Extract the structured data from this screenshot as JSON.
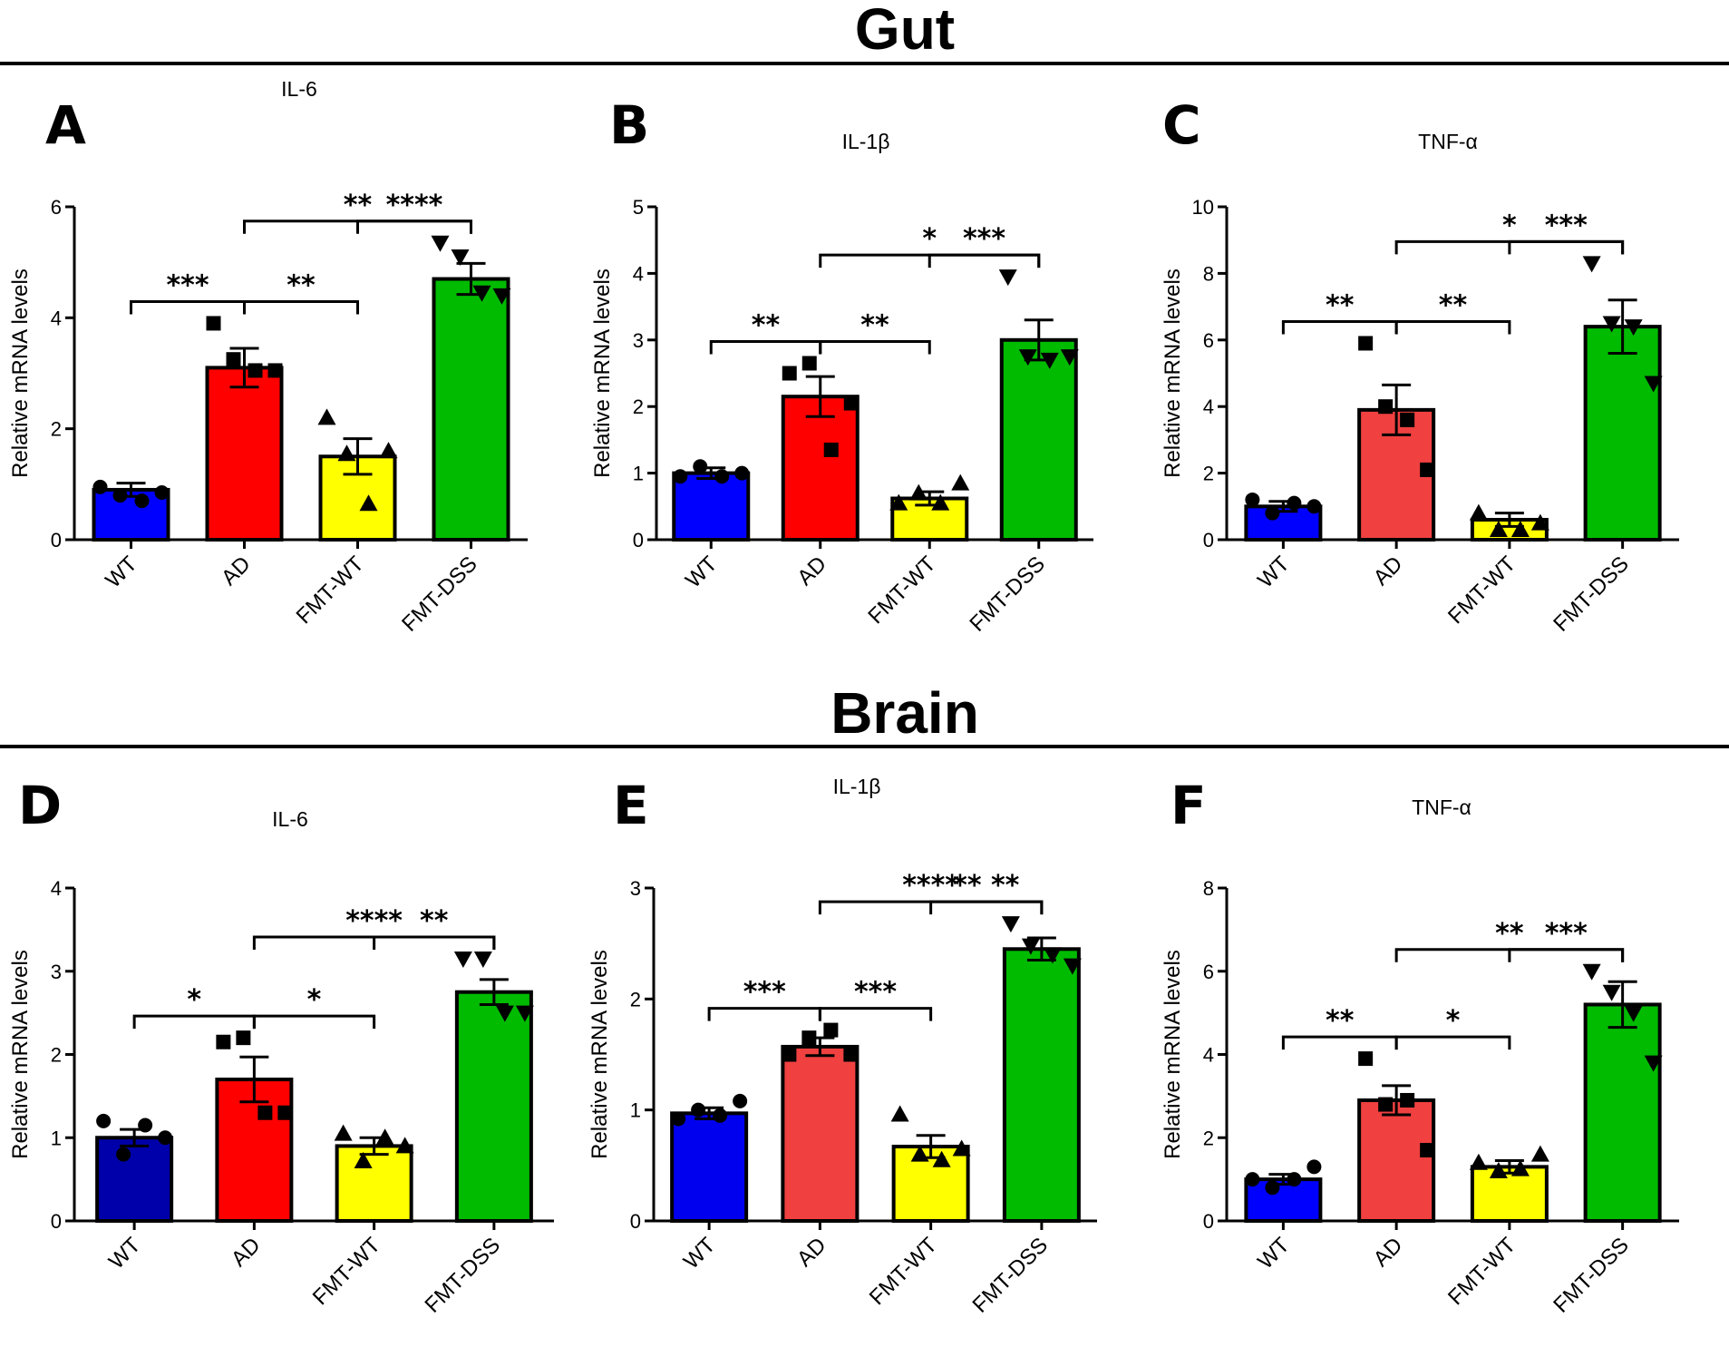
{
  "sections": [
    {
      "title": "Gut"
    },
    {
      "title": "Brain"
    }
  ],
  "chart_data": [
    {
      "panel": "A",
      "section": "Gut",
      "type": "bar",
      "title": "IL-6",
      "ylabel": "Relative mRNA levels",
      "xlabel": "",
      "categories": [
        "WT",
        "AD",
        "FMT-WT",
        "FMT-DSS"
      ],
      "values": [
        0.9,
        3.1,
        1.5,
        4.7
      ],
      "sem": [
        0.12,
        0.35,
        0.32,
        0.28
      ],
      "points": [
        [
          0.95,
          0.8,
          0.7,
          0.85
        ],
        [
          3.9,
          3.25,
          3.05,
          3.05
        ],
        [
          2.2,
          1.55,
          0.65,
          1.6
        ],
        [
          5.35,
          5.1,
          4.45,
          4.4
        ]
      ],
      "colors": [
        "#0000ff",
        "#ff0000",
        "#ffff00",
        "#00bb00"
      ],
      "markers": [
        "circle",
        "square",
        "triangle-up",
        "triangle-down"
      ],
      "ylim": [
        0,
        6
      ],
      "yticks": [
        "0",
        "2",
        "4",
        "6"
      ],
      "ytick_values": [
        0,
        2,
        4,
        6
      ],
      "comparisons": [
        {
          "from": 0,
          "to": 1,
          "label": "***"
        },
        {
          "from": 1,
          "to": 2,
          "label": "**"
        },
        {
          "from": 1,
          "to": 3,
          "label": "**"
        },
        {
          "from": 2,
          "to": 3,
          "label": "****"
        }
      ]
    },
    {
      "panel": "B",
      "section": "Gut",
      "type": "bar",
      "title": "IL-1β",
      "ylabel": "Relative mRNA levels",
      "xlabel": "",
      "categories": [
        "WT",
        "AD",
        "FMT-WT",
        "FMT-DSS"
      ],
      "values": [
        1.0,
        2.15,
        0.62,
        3.0
      ],
      "sem": [
        0.08,
        0.3,
        0.1,
        0.3
      ],
      "points": [
        [
          0.95,
          1.1,
          0.95,
          1.0
        ],
        [
          2.5,
          2.65,
          1.35,
          2.05
        ],
        [
          0.55,
          0.7,
          0.55,
          0.85
        ],
        [
          3.95,
          2.75,
          2.7,
          2.75
        ]
      ],
      "colors": [
        "#0000ff",
        "#ff0000",
        "#ffff00",
        "#00bb00"
      ],
      "markers": [
        "circle",
        "square",
        "triangle-up",
        "triangle-down"
      ],
      "ylim": [
        0,
        5
      ],
      "yticks": [
        "0",
        "1",
        "2",
        "3",
        "4",
        "5"
      ],
      "ytick_values": [
        0,
        1,
        2,
        3,
        4,
        5
      ],
      "comparisons": [
        {
          "from": 0,
          "to": 1,
          "label": "**"
        },
        {
          "from": 1,
          "to": 2,
          "label": "**"
        },
        {
          "from": 1,
          "to": 3,
          "label": "*"
        },
        {
          "from": 2,
          "to": 3,
          "label": "***"
        }
      ]
    },
    {
      "panel": "C",
      "section": "Gut",
      "type": "bar",
      "title": "TNF-α",
      "ylabel": "Relative mRNA levels",
      "xlabel": "",
      "categories": [
        "WT",
        "AD",
        "FMT-WT",
        "FMT-DSS"
      ],
      "values": [
        1.0,
        3.9,
        0.6,
        6.4
      ],
      "sem": [
        0.15,
        0.75,
        0.2,
        0.8
      ],
      "points": [
        [
          1.2,
          0.8,
          1.1,
          1.0
        ],
        [
          5.9,
          4.0,
          3.6,
          2.1
        ],
        [
          0.8,
          0.3,
          0.3,
          0.5
        ],
        [
          8.3,
          6.5,
          6.4,
          4.7
        ]
      ],
      "colors": [
        "#0000ff",
        "#f04040",
        "#ffff00",
        "#00bb00"
      ],
      "markers": [
        "circle",
        "square",
        "triangle-up",
        "triangle-down"
      ],
      "ylim": [
        0,
        10
      ],
      "yticks": [
        "0",
        "2",
        "4",
        "6",
        "8",
        "10"
      ],
      "ytick_values": [
        0,
        2,
        4,
        6,
        8,
        10
      ],
      "comparisons": [
        {
          "from": 0,
          "to": 1,
          "label": "**"
        },
        {
          "from": 1,
          "to": 2,
          "label": "**"
        },
        {
          "from": 1,
          "to": 3,
          "label": "*"
        },
        {
          "from": 2,
          "to": 3,
          "label": "***"
        }
      ]
    },
    {
      "panel": "D",
      "section": "Brain",
      "type": "bar",
      "title": "IL-6",
      "ylabel": "Relative mRNA levels",
      "xlabel": "",
      "categories": [
        "WT",
        "AD",
        "FMT-WT",
        "FMT-DSS"
      ],
      "values": [
        1.0,
        1.7,
        0.9,
        2.75
      ],
      "sem": [
        0.1,
        0.27,
        0.1,
        0.15
      ],
      "points": [
        [
          1.2,
          0.8,
          1.15,
          1.0
        ],
        [
          2.15,
          2.2,
          1.3,
          1.3
        ],
        [
          1.05,
          0.72,
          1.0,
          0.9
        ],
        [
          3.15,
          3.15,
          2.5,
          2.5
        ]
      ],
      "colors": [
        "#0000aa",
        "#ff0000",
        "#ffff00",
        "#00bb00"
      ],
      "markers": [
        "circle",
        "square",
        "triangle-up",
        "triangle-down"
      ],
      "ylim": [
        0,
        4
      ],
      "yticks": [
        "0",
        "1",
        "2",
        "3",
        "4"
      ],
      "ytick_values": [
        0,
        1,
        2,
        3,
        4
      ],
      "comparisons": [
        {
          "from": 0,
          "to": 1,
          "label": "*"
        },
        {
          "from": 1,
          "to": 2,
          "label": "*"
        },
        {
          "from": 1,
          "to": 3,
          "label": "****"
        },
        {
          "from": 2,
          "to": 3,
          "label": "**"
        }
      ]
    },
    {
      "panel": "E",
      "section": "Brain",
      "type": "bar",
      "title": "IL-1β",
      "ylabel": "Relative mRNA levels",
      "xlabel": "",
      "categories": [
        "WT",
        "AD",
        "FMT-WT",
        "FMT-DSS"
      ],
      "values": [
        0.97,
        1.57,
        0.67,
        2.45
      ],
      "sem": [
        0.05,
        0.08,
        0.1,
        0.1
      ],
      "points": [
        [
          0.92,
          1.0,
          0.95,
          1.08
        ],
        [
          1.5,
          1.65,
          1.72,
          1.5
        ],
        [
          0.96,
          0.6,
          0.55,
          0.65
        ],
        [
          2.68,
          2.48,
          2.4,
          2.3
        ]
      ],
      "colors": [
        "#0000ee",
        "#f04040",
        "#ffff00",
        "#00bb00"
      ],
      "markers": [
        "circle",
        "square",
        "triangle-up",
        "triangle-down"
      ],
      "ylim": [
        0,
        3
      ],
      "yticks": [
        "0",
        "1",
        "2",
        "3"
      ],
      "ytick_values": [
        0,
        1,
        2,
        3
      ],
      "comparisons": [
        {
          "from": 0,
          "to": 1,
          "label": "***"
        },
        {
          "from": 1,
          "to": 2,
          "label": "***"
        },
        {
          "from": 1,
          "to": 3,
          "label": "****"
        },
        {
          "from": 2,
          "to": 3,
          "label": "** **"
        }
      ]
    },
    {
      "panel": "F",
      "section": "Brain",
      "type": "bar",
      "title": "TNF-α",
      "ylabel": "Relative mRNA levels",
      "xlabel": "",
      "categories": [
        "WT",
        "AD",
        "FMT-WT",
        "FMT-DSS"
      ],
      "values": [
        1.0,
        2.9,
        1.3,
        5.2
      ],
      "sem": [
        0.12,
        0.35,
        0.15,
        0.55
      ],
      "points": [
        [
          1.0,
          0.8,
          1.0,
          1.3
        ],
        [
          3.9,
          2.8,
          2.9,
          1.7
        ],
        [
          1.4,
          1.2,
          1.25,
          1.6
        ],
        [
          6.0,
          5.5,
          5.0,
          3.8
        ]
      ],
      "colors": [
        "#0000ff",
        "#f04040",
        "#ffff00",
        "#00bb00"
      ],
      "markers": [
        "circle",
        "square",
        "triangle-up",
        "triangle-down"
      ],
      "ylim": [
        0,
        8
      ],
      "yticks": [
        "0",
        "2",
        "4",
        "6",
        "8"
      ],
      "ytick_values": [
        0,
        2,
        4,
        6,
        8
      ],
      "comparisons": [
        {
          "from": 0,
          "to": 1,
          "label": "**"
        },
        {
          "from": 1,
          "to": 2,
          "label": "*"
        },
        {
          "from": 1,
          "to": 3,
          "label": "**"
        },
        {
          "from": 2,
          "to": 3,
          "label": "***"
        }
      ]
    }
  ]
}
